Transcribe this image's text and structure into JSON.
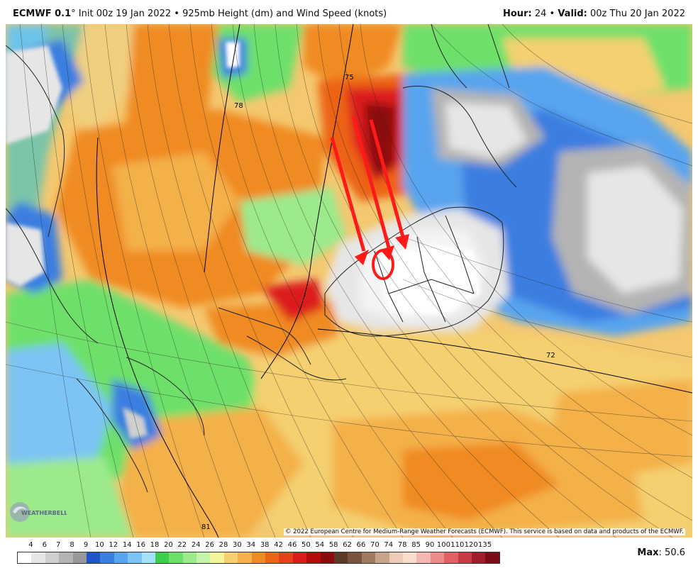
{
  "header": {
    "model": "ECMWF 0.1",
    "degree": "°",
    "init": "Init 00z 19 Jan 2022",
    "bullet": "•",
    "field": "925mb Height (dm) and Wind Speed (knots)",
    "hour_label": "Hour:",
    "hour_value": "24",
    "valid_label": "Valid:",
    "valid_value": "00z Thu 20 Jan 2022"
  },
  "map": {
    "contour_labels": [
      "75",
      "78",
      "72",
      "81"
    ],
    "annotation_color": "#ff1a1a",
    "land_outline_color": "#222222"
  },
  "copyright": "© 2022 European Centre for Medium-Range Weather Forecasts (ECMWF). This service is based on data and products of the ECMWF.",
  "logo": {
    "text": "WEATHERBELL"
  },
  "legend": {
    "labels": [
      "4",
      "6",
      "7",
      "8",
      "9",
      "10",
      "12",
      "14",
      "16",
      "18",
      "20",
      "22",
      "24",
      "26",
      "28",
      "30",
      "34",
      "38",
      "42",
      "46",
      "50",
      "54",
      "58",
      "62",
      "66",
      "70",
      "74",
      "78",
      "85",
      "90",
      "100",
      "110",
      "120",
      "135"
    ],
    "colors": [
      "#ffffff",
      "#e6e6e6",
      "#cfcfcf",
      "#b4b4b4",
      "#989898",
      "#1f55c8",
      "#3a7ee0",
      "#58a4ee",
      "#7cc4f4",
      "#a4e0f8",
      "#3ccf4c",
      "#6ee06a",
      "#9cea8c",
      "#c4f4ac",
      "#f4f49c",
      "#f4d070",
      "#f4b04a",
      "#f08a22",
      "#ec6414",
      "#e8401a",
      "#dc1c1c",
      "#b80a0a",
      "#8c0a0a",
      "#5c3a28",
      "#7a5240",
      "#a07a60",
      "#c8a48c",
      "#eccbb8",
      "#f8dccc",
      "#f4b8b4",
      "#ec8c88",
      "#e06064",
      "#c83a44",
      "#a01e2a",
      "#7c0c18"
    ]
  },
  "max": {
    "label": "Max",
    "value": "50.6"
  }
}
